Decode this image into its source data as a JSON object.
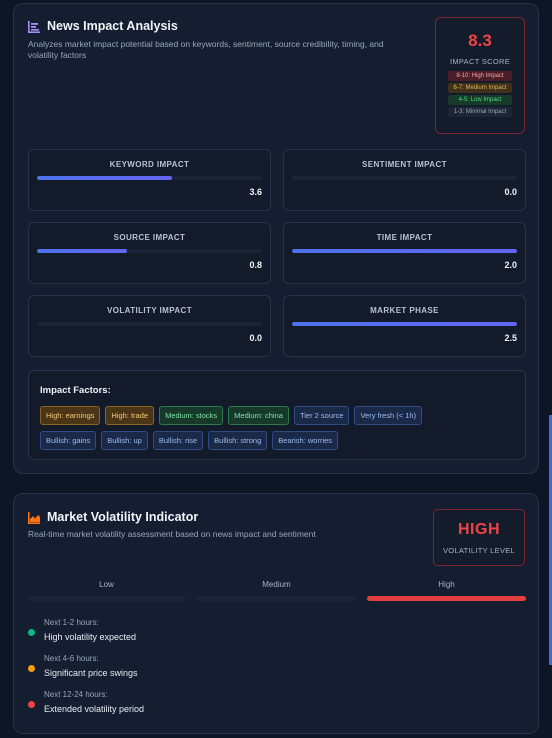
{
  "news": {
    "title": "News Impact Analysis",
    "subtitle_line1": "Analyzes market impact potential based on keywords, sentiment, source credibility, timing, and",
    "subtitle_line2": "volatility factors",
    "score": {
      "value": "8.3",
      "label": "IMPACT SCORE",
      "legend": [
        "8-10: High Impact",
        "6-7: Medium Impact",
        "4-5: Low Impact",
        "1-3: Minimal Impact"
      ]
    },
    "metrics": [
      {
        "label": "KEYWORD IMPACT",
        "value": "3.6",
        "fill": 0.6
      },
      {
        "label": "SENTIMENT IMPACT",
        "value": "0.0",
        "fill": 0.0
      },
      {
        "label": "SOURCE IMPACT",
        "value": "0.8",
        "fill": 0.4
      },
      {
        "label": "TIME IMPACT",
        "value": "2.0",
        "fill": 1.0
      },
      {
        "label": "VOLATILITY IMPACT",
        "value": "0.0",
        "fill": 0.0
      },
      {
        "label": "MARKET PHASE",
        "value": "2.5",
        "fill": 1.0
      }
    ],
    "factors": {
      "title": "Impact Factors:",
      "row1": [
        "High: earnings",
        "High: trade",
        "Medium: stocks",
        "Medium: china",
        "Tier 2 source",
        "Very fresh (< 1h)"
      ],
      "row2": [
        "Bullish: gains",
        "Bullish: up",
        "Bullish: rise",
        "Bullish: strong",
        "Bearish: worries"
      ]
    }
  },
  "volatility": {
    "title": "Market Volatility Indicator",
    "subtitle": "Real-time market volatility assessment based on news impact and sentiment",
    "level": "HIGH",
    "level_label": "VOLATILITY LEVEL",
    "segments": [
      "Low",
      "Medium",
      "High"
    ],
    "active_segment": 2,
    "forecast": [
      {
        "time": "Next 1-2 hours:",
        "desc": "High volatility expected",
        "color": "#10b981"
      },
      {
        "time": "Next 4-6 hours:",
        "desc": "Significant price swings",
        "color": "#f59e0b"
      },
      {
        "time": "Next 12-24 hours:",
        "desc": "Extended volatility period",
        "color": "#ef4444"
      }
    ]
  },
  "colors": {
    "accent": "#4f73ee",
    "danger": "#ef4444"
  },
  "icons": {
    "news": "bar-chart-icon",
    "volatility": "area-chart-icon"
  }
}
